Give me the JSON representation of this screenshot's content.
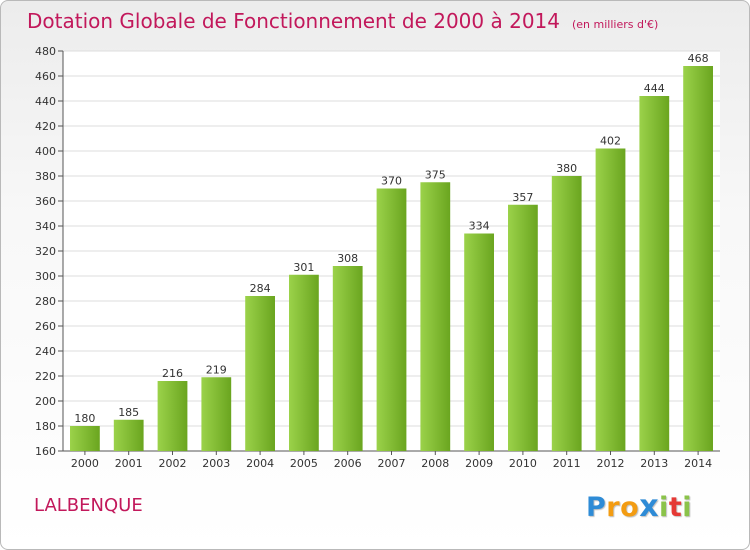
{
  "header": {
    "title": "Dotation Globale de Fonctionnement de 2000 à 2014",
    "subtitle": "(en milliers d'€)"
  },
  "commune": "LALBENQUE",
  "logo": {
    "letters": [
      "P",
      "r",
      "o",
      "x",
      "i",
      "t",
      "i"
    ],
    "colors": [
      "#2e8bd6",
      "#f39c12",
      "#f39c12",
      "#2e8bd6",
      "#8bc34a",
      "#e53935",
      "#8bc34a"
    ]
  },
  "colors": {
    "title": "#c2185b",
    "bar_light": "#9bd24a",
    "bar_dark": "#6aa51f"
  },
  "chart_data": {
    "type": "bar",
    "categories": [
      "2000",
      "2001",
      "2002",
      "2003",
      "2004",
      "2005",
      "2006",
      "2007",
      "2008",
      "2009",
      "2010",
      "2011",
      "2012",
      "2013",
      "2014"
    ],
    "values": [
      180,
      185,
      216,
      219,
      284,
      301,
      308,
      370,
      375,
      334,
      357,
      380,
      402,
      444,
      468
    ],
    "data_labels": [
      "180",
      "185",
      "216",
      "219",
      "284",
      "301",
      "308",
      "370",
      "375",
      "334",
      "357",
      "380",
      "402",
      "444",
      "468"
    ],
    "y_ticks": [
      "160",
      "180",
      "200",
      "220",
      "240",
      "260",
      "280",
      "300",
      "320",
      "340",
      "360",
      "380",
      "400",
      "420",
      "440",
      "460",
      "480"
    ],
    "ylim": [
      160,
      480
    ],
    "grid": true,
    "legend": "none"
  }
}
